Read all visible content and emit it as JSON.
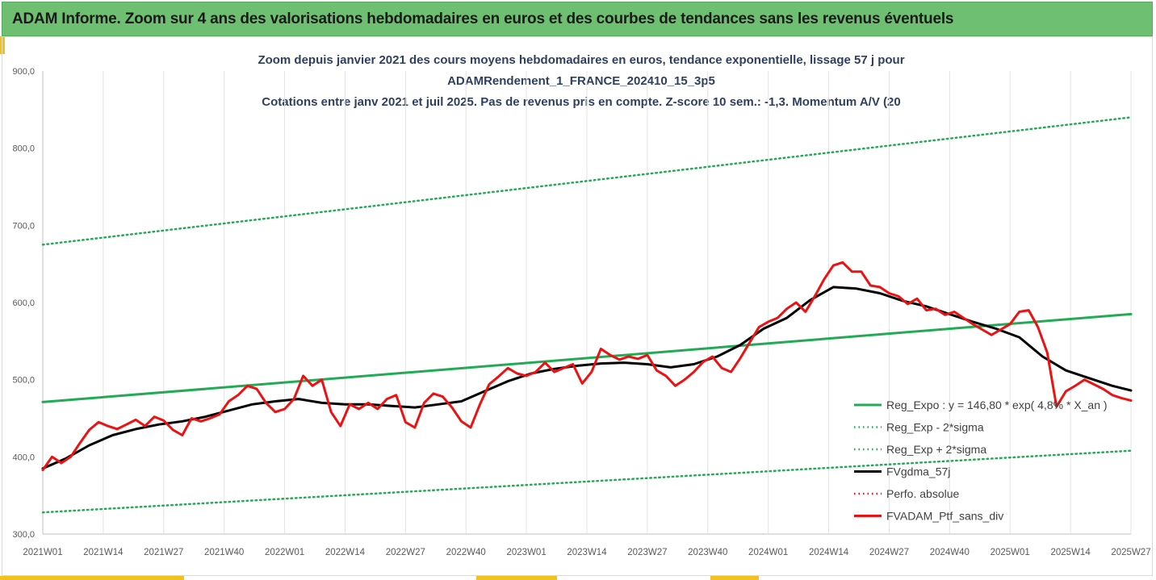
{
  "banner": {
    "title": "ADAM Informe. Zoom sur 4 ans des valorisations hebdomadaires en euros et des courbes de tendances sans les revenus éventuels",
    "color": "#6fbf73"
  },
  "chart_data": {
    "type": "line",
    "title_lines": [
      "Zoom depuis janvier 2021 des cours moyens hebdomadaires  en euros, tendance exponentielle, lissage 57 j pour",
      "ADAMRendement_1_FRANCE_202410_15_3p5",
      "Cotations entre janv 2021 et juil 2025. Pas de revenus pris en compte. Z-score 10 sem.: -1,3. Momentum A/V (20"
    ],
    "xlabel": "",
    "ylabel": "",
    "ylim": [
      300,
      900
    ],
    "y_ticks": [
      "300,0",
      "400,0",
      "500,0",
      "600,0",
      "700,0",
      "800,0",
      "900,0"
    ],
    "x_tick_labels": [
      "2021W01",
      "2021W14",
      "2021W27",
      "2021W40",
      "2022W01",
      "2022W14",
      "2022W27",
      "2022W40",
      "2023W01",
      "2023W14",
      "2023W27",
      "2023W40",
      "2024W01",
      "2024W14",
      "2024W27",
      "2024W40",
      "2025W01",
      "2025W14",
      "2025W27"
    ],
    "x_range_weeks": [
      0,
      234
    ],
    "grid": "vertical",
    "legend_position": "bottom-right",
    "series": [
      {
        "name": "Reg_Expo : y = 146,80 * exp( 4,8% * X_an )",
        "color": "#22aa55",
        "style": "solid",
        "x": [
          0,
          234
        ],
        "values": [
          471,
          585
        ]
      },
      {
        "name": "Reg_Exp - 2*sigma",
        "color": "#22aa55",
        "style": "dotted",
        "x": [
          0,
          234
        ],
        "values": [
          328,
          408
        ]
      },
      {
        "name": "Reg_Exp + 2*sigma",
        "color": "#22aa55",
        "style": "dotted",
        "x": [
          0,
          234
        ],
        "values": [
          675,
          840
        ]
      },
      {
        "name": "FVgdma_57j",
        "color": "#000000",
        "style": "solid",
        "x": [
          0,
          5,
          10,
          15,
          20,
          25,
          30,
          35,
          40,
          45,
          50,
          55,
          60,
          65,
          70,
          75,
          80,
          85,
          90,
          95,
          100,
          105,
          110,
          115,
          120,
          125,
          130,
          135,
          140,
          145,
          150,
          155,
          160,
          165,
          170,
          175,
          180,
          185,
          190,
          195,
          200,
          205,
          210,
          215,
          220,
          225,
          230,
          234
        ],
        "values": [
          385,
          398,
          415,
          428,
          436,
          442,
          446,
          452,
          460,
          468,
          472,
          475,
          470,
          468,
          468,
          466,
          464,
          468,
          472,
          485,
          498,
          508,
          514,
          518,
          521,
          522,
          520,
          516,
          520,
          530,
          545,
          566,
          580,
          603,
          620,
          618,
          612,
          602,
          595,
          585,
          575,
          566,
          555,
          530,
          512,
          502,
          492,
          486
        ]
      },
      {
        "name": "Perfo. absolue",
        "color": "#ee1111",
        "style": "dotted",
        "x": [],
        "values": []
      },
      {
        "name": "FVADAM_Ptf_sans_div",
        "color": "#ee1111",
        "style": "solid",
        "x": [
          0,
          2,
          4,
          6,
          8,
          10,
          12,
          14,
          16,
          18,
          20,
          22,
          24,
          26,
          28,
          30,
          32,
          34,
          36,
          38,
          40,
          42,
          44,
          46,
          48,
          50,
          52,
          54,
          56,
          58,
          60,
          62,
          64,
          66,
          68,
          70,
          72,
          74,
          76,
          78,
          80,
          82,
          84,
          86,
          88,
          90,
          92,
          94,
          96,
          98,
          100,
          102,
          104,
          106,
          108,
          110,
          112,
          114,
          116,
          118,
          120,
          122,
          124,
          126,
          128,
          130,
          132,
          134,
          136,
          138,
          140,
          142,
          144,
          146,
          148,
          150,
          152,
          154,
          156,
          158,
          160,
          162,
          164,
          166,
          168,
          170,
          172,
          174,
          176,
          178,
          180,
          182,
          184,
          186,
          188,
          190,
          192,
          194,
          196,
          198,
          200,
          202,
          204,
          206,
          208,
          210,
          212,
          214,
          216,
          218,
          220,
          222,
          224,
          226,
          228,
          230,
          232,
          234
        ],
        "values": [
          383,
          400,
          392,
          400,
          418,
          435,
          445,
          440,
          436,
          442,
          448,
          440,
          452,
          447,
          435,
          428,
          450,
          446,
          450,
          455,
          472,
          480,
          492,
          488,
          470,
          458,
          462,
          475,
          505,
          492,
          500,
          458,
          440,
          468,
          462,
          470,
          462,
          475,
          480,
          445,
          438,
          470,
          482,
          478,
          464,
          446,
          438,
          468,
          494,
          504,
          515,
          508,
          505,
          510,
          522,
          510,
          515,
          520,
          495,
          510,
          540,
          532,
          526,
          530,
          527,
          532,
          512,
          505,
          492,
          500,
          510,
          523,
          530,
          515,
          510,
          528,
          548,
          568,
          575,
          580,
          592,
          600,
          588,
          608,
          630,
          648,
          652,
          640,
          640,
          622,
          620,
          612,
          608,
          598,
          605,
          590,
          592,
          584,
          588,
          580,
          572,
          565,
          558,
          565,
          572,
          588,
          590,
          568,
          535,
          465,
          485,
          492,
          500,
          494,
          488,
          480,
          476,
          473
        ]
      }
    ]
  }
}
